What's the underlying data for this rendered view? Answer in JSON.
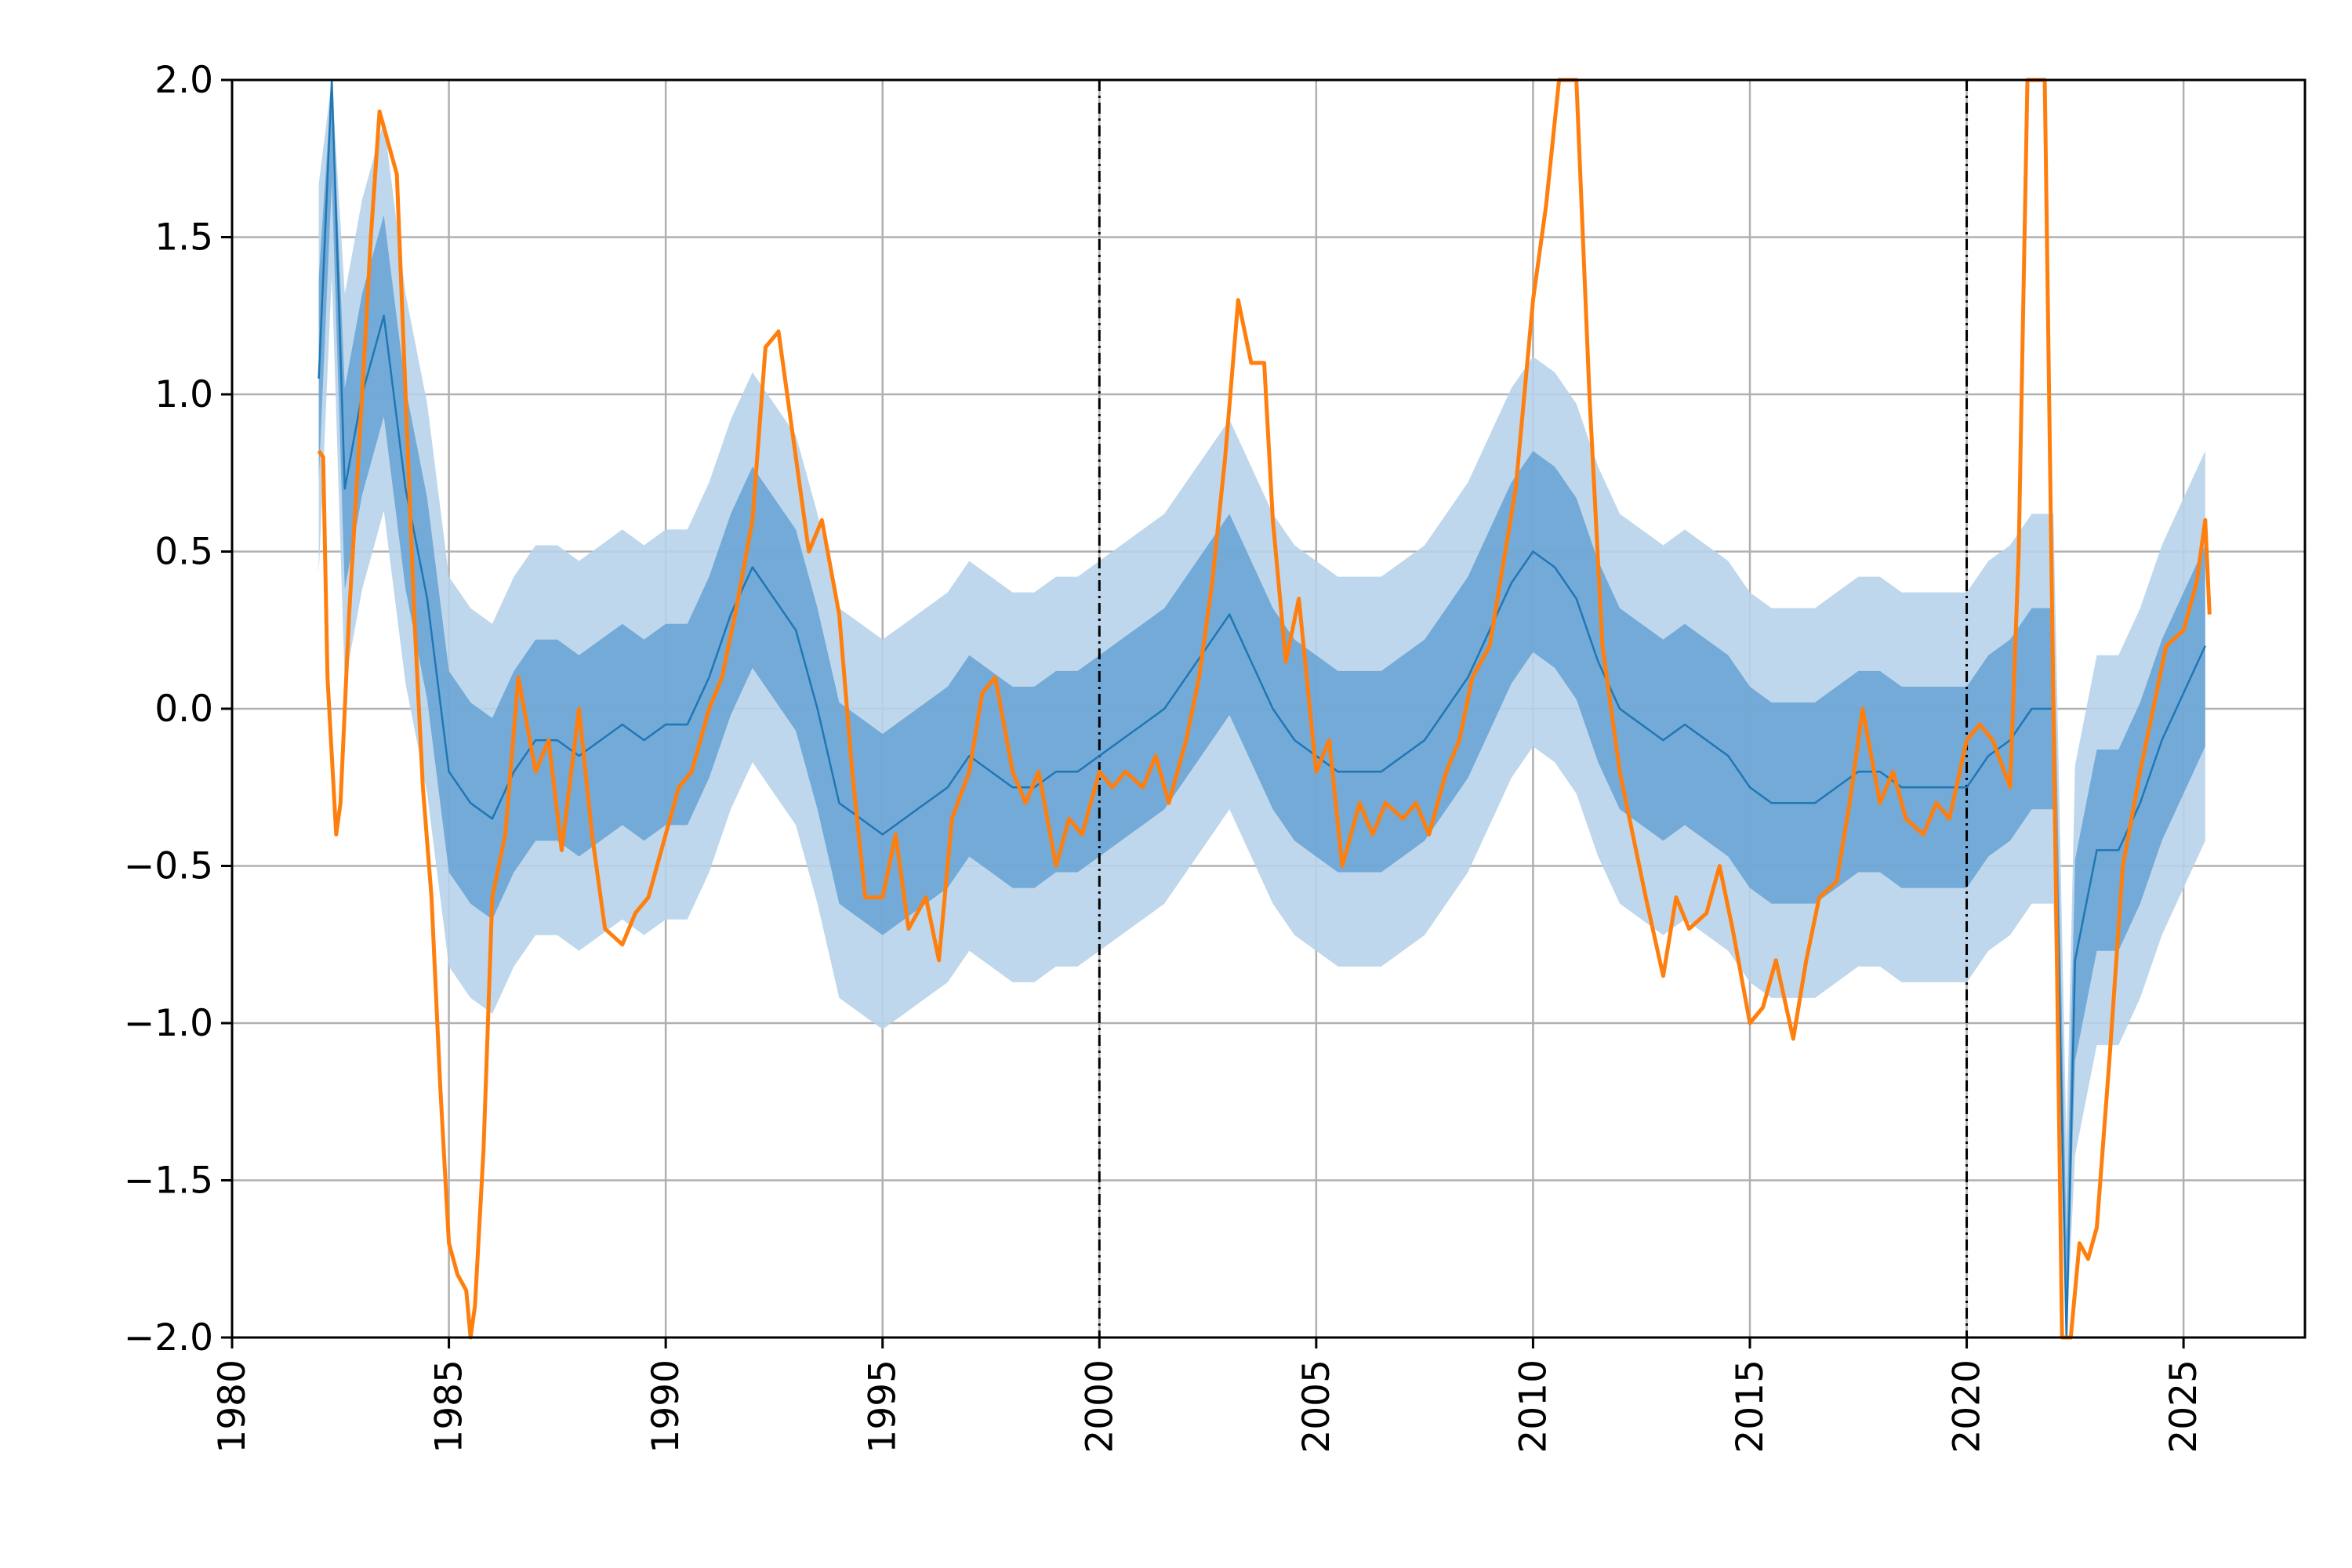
{
  "chart_data": {
    "type": "line",
    "title": "",
    "xlabel": "",
    "ylabel": "",
    "xlim": [
      1980,
      2027.8
    ],
    "ylim": [
      -2.0,
      2.0
    ],
    "grid": true,
    "x_ticks": [
      1980,
      1985,
      1990,
      1995,
      2000,
      2005,
      2010,
      2015,
      2020,
      2025
    ],
    "x_tick_labels": [
      "1980",
      "1985",
      "1990",
      "1995",
      "2000",
      "2005",
      "2010",
      "2015",
      "2020",
      "2025"
    ],
    "y_ticks": [
      -2.0,
      -1.5,
      -1.0,
      -0.5,
      0.0,
      0.5,
      1.0,
      1.5,
      2.0
    ],
    "y_tick_labels": [
      "−2.0",
      "−1.5",
      "−1.0",
      "−0.5",
      "0.0",
      "0.5",
      "1.0",
      "1.5",
      "2.0"
    ],
    "vlines": [
      2000,
      2020
    ],
    "colors": {
      "median": "#1f77b4",
      "actual": "#ff7f0e",
      "band_inner": "#5b9bd0",
      "band_outer": "#b7d3ea",
      "grid": "#b0b0b0",
      "vline": "#000000"
    },
    "series": [
      {
        "x": [
          1982.0,
          1982.3,
          1982.6,
          1983.0,
          1983.5,
          1984.0,
          1984.5,
          1985.0,
          1985.5,
          1986.0,
          1986.5,
          1987.0,
          1987.5,
          1988.0,
          1988.5,
          1989.0,
          1989.5,
          1990.0,
          1990.5,
          1991.0,
          1991.5,
          1992.0,
          1992.5,
          1993.0,
          1993.5,
          1994.0,
          1994.5,
          1995.0,
          1995.5,
          1996.0,
          1996.5,
          1997.0,
          1997.5,
          1998.0,
          1998.5,
          1999.0,
          1999.5,
          2000.0,
          2000.5,
          2001.0,
          2001.5,
          2002.0,
          2002.5,
          2003.0,
          2003.5,
          2004.0,
          2004.5,
          2005.0,
          2005.5,
          2006.0,
          2006.5,
          2007.0,
          2007.5,
          2008.0,
          2008.5,
          2009.0,
          2009.5,
          2010.0,
          2010.5,
          2011.0,
          2011.5,
          2012.0,
          2012.5,
          2013.0,
          2013.5,
          2014.0,
          2014.5,
          2015.0,
          2015.5,
          2016.0,
          2016.5,
          2017.0,
          2017.5,
          2018.0,
          2018.5,
          2019.0,
          2019.5,
          2020.0,
          2020.5,
          2021.0,
          2021.5,
          2022.0,
          2022.3,
          2022.5,
          2023.0,
          2023.5,
          2024.0,
          2024.5,
          2025.0,
          2025.5
        ],
        "values": [
          1.05,
          2.0,
          0.7,
          1.0,
          1.25,
          0.7,
          0.35,
          -0.2,
          -0.3,
          -0.35,
          -0.2,
          -0.1,
          -0.1,
          -0.15,
          -0.1,
          -0.05,
          -0.1,
          -0.05,
          -0.05,
          0.1,
          0.3,
          0.45,
          0.35,
          0.25,
          0.0,
          -0.3,
          -0.35,
          -0.4,
          -0.35,
          -0.3,
          -0.25,
          -0.15,
          -0.2,
          -0.25,
          -0.25,
          -0.2,
          -0.2,
          -0.15,
          -0.1,
          -0.05,
          0.0,
          0.1,
          0.2,
          0.3,
          0.15,
          0.0,
          -0.1,
          -0.15,
          -0.2,
          -0.2,
          -0.2,
          -0.15,
          -0.1,
          0.0,
          0.1,
          0.25,
          0.4,
          0.5,
          0.45,
          0.35,
          0.15,
          0.0,
          -0.05,
          -0.1,
          -0.05,
          -0.1,
          -0.15,
          -0.25,
          -0.3,
          -0.3,
          -0.3,
          -0.25,
          -0.2,
          -0.2,
          -0.25,
          -0.25,
          -0.25,
          -0.25,
          -0.15,
          -0.1,
          0.0,
          0.0,
          -2.0,
          -0.8,
          -0.45,
          -0.45,
          -0.3,
          -0.1,
          0.05,
          0.2
        ]
      },
      {
        "x": [
          1982.0,
          1982.1,
          1982.2,
          1982.4,
          1982.5,
          1982.7,
          1983.0,
          1983.2,
          1983.4,
          1983.6,
          1983.8,
          1984.0,
          1984.2,
          1984.4,
          1984.6,
          1984.8,
          1985.0,
          1985.2,
          1985.4,
          1985.5,
          1985.6,
          1985.8,
          1986.0,
          1986.3,
          1986.6,
          1987.0,
          1987.3,
          1987.6,
          1988.0,
          1988.3,
          1988.6,
          1989.0,
          1989.3,
          1989.6,
          1990.0,
          1990.3,
          1990.6,
          1991.0,
          1991.3,
          1991.6,
          1992.0,
          1992.3,
          1992.6,
          1993.0,
          1993.3,
          1993.6,
          1994.0,
          1994.3,
          1994.6,
          1995.0,
          1995.3,
          1995.6,
          1996.0,
          1996.3,
          1996.6,
          1997.0,
          1997.3,
          1997.6,
          1998.0,
          1998.3,
          1998.6,
          1999.0,
          1999.3,
          1999.6,
          2000.0,
          2000.3,
          2000.6,
          2001.0,
          2001.3,
          2001.6,
          2002.0,
          2002.3,
          2002.6,
          2002.9,
          2003.2,
          2003.5,
          2003.8,
          2004.0,
          2004.3,
          2004.6,
          2005.0,
          2005.3,
          2005.6,
          2006.0,
          2006.3,
          2006.6,
          2007.0,
          2007.3,
          2007.6,
          2008.0,
          2008.3,
          2008.6,
          2009.0,
          2009.3,
          2009.6,
          2010.0,
          2010.3,
          2010.6,
          2011.0,
          2011.3,
          2011.6,
          2012.0,
          2012.3,
          2012.6,
          2013.0,
          2013.3,
          2013.6,
          2014.0,
          2014.3,
          2014.6,
          2015.0,
          2015.3,
          2015.6,
          2016.0,
          2016.3,
          2016.6,
          2017.0,
          2017.3,
          2017.6,
          2018.0,
          2018.3,
          2018.6,
          2019.0,
          2019.3,
          2019.6,
          2020.0,
          2020.3,
          2020.6,
          2021.0,
          2021.2,
          2021.4,
          2021.6,
          2021.8,
          2022.0,
          2022.2,
          2022.4,
          2022.6,
          2022.8,
          2023.0,
          2023.3,
          2023.6,
          2024.0,
          2024.3,
          2024.6,
          2025.0,
          2025.3,
          2025.5,
          2025.6
        ],
        "values": [
          0.82,
          0.8,
          0.1,
          -0.4,
          -0.3,
          0.3,
          1.0,
          1.5,
          1.9,
          1.8,
          1.7,
          1.0,
          0.3,
          -0.25,
          -0.6,
          -1.2,
          -1.7,
          -1.8,
          -1.85,
          -2.0,
          -1.9,
          -1.4,
          -0.6,
          -0.4,
          0.1,
          -0.2,
          -0.1,
          -0.45,
          0.0,
          -0.4,
          -0.7,
          -0.75,
          -0.65,
          -0.6,
          -0.4,
          -0.25,
          -0.2,
          0.0,
          0.1,
          0.3,
          0.6,
          1.15,
          1.2,
          0.8,
          0.5,
          0.6,
          0.3,
          -0.2,
          -0.6,
          -0.6,
          -0.4,
          -0.7,
          -0.6,
          -0.8,
          -0.35,
          -0.2,
          0.05,
          0.1,
          -0.2,
          -0.3,
          -0.2,
          -0.5,
          -0.35,
          -0.4,
          -0.2,
          -0.25,
          -0.2,
          -0.25,
          -0.15,
          -0.3,
          -0.1,
          0.1,
          0.4,
          0.8,
          1.3,
          1.1,
          1.1,
          0.6,
          0.15,
          0.35,
          -0.2,
          -0.1,
          -0.5,
          -0.3,
          -0.4,
          -0.3,
          -0.35,
          -0.3,
          -0.4,
          -0.2,
          -0.1,
          0.1,
          0.2,
          0.45,
          0.7,
          1.3,
          1.6,
          2.0,
          2.0,
          1.0,
          0.2,
          -0.2,
          -0.4,
          -0.6,
          -0.85,
          -0.6,
          -0.7,
          -0.65,
          -0.5,
          -0.7,
          -1.0,
          -0.95,
          -0.8,
          -1.05,
          -0.8,
          -0.6,
          -0.55,
          -0.3,
          0.0,
          -0.3,
          -0.2,
          -0.35,
          -0.4,
          -0.3,
          -0.35,
          -0.1,
          -0.05,
          -0.1,
          -0.25,
          0.5,
          2.0,
          2.0,
          2.0,
          0.0,
          -2.0,
          -2.0,
          -1.7,
          -1.75,
          -1.65,
          -1.1,
          -0.5,
          -0.2,
          0.0,
          0.2,
          0.25,
          0.4,
          0.6,
          0.3
        ]
      }
    ]
  }
}
